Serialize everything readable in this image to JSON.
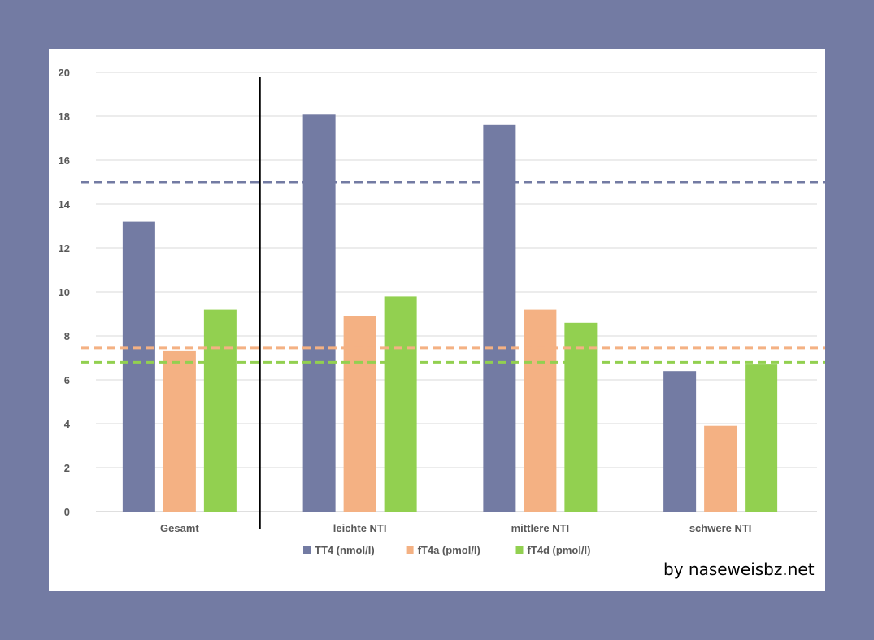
{
  "chart_data": {
    "type": "bar",
    "title": "",
    "xlabel": "",
    "ylabel": "",
    "ylim": [
      0,
      20
    ],
    "yticks": [
      0,
      2,
      4,
      6,
      8,
      10,
      12,
      14,
      16,
      18,
      20
    ],
    "grid": true,
    "legend_position": "bottom",
    "categories": [
      "Gesamt",
      "leichte NTI",
      "mittlere NTI",
      "schwere NTI"
    ],
    "series": [
      {
        "name": "TT4 (nmol/l)",
        "color": "#737ba3",
        "values": [
          13.2,
          18.1,
          17.6,
          6.4
        ]
      },
      {
        "name": "fT4a (pmol/l)",
        "color": "#f4b183",
        "values": [
          7.3,
          8.9,
          9.2,
          3.9
        ]
      },
      {
        "name": "fT4d (pmol/l)",
        "color": "#92d050",
        "values": [
          9.2,
          9.8,
          8.6,
          6.7
        ]
      }
    ],
    "reference_lines": [
      {
        "series": "TT4 (nmol/l)",
        "value": 15,
        "color": "#737ba3"
      },
      {
        "series": "fT4a (pmol/l)",
        "value": 7.45,
        "color": "#f4b183"
      },
      {
        "series": "fT4d (pmol/l)",
        "value": 6.8,
        "color": "#92d050"
      }
    ],
    "separator_after_category": "Gesamt"
  },
  "credit": "by naseweisbz.net"
}
